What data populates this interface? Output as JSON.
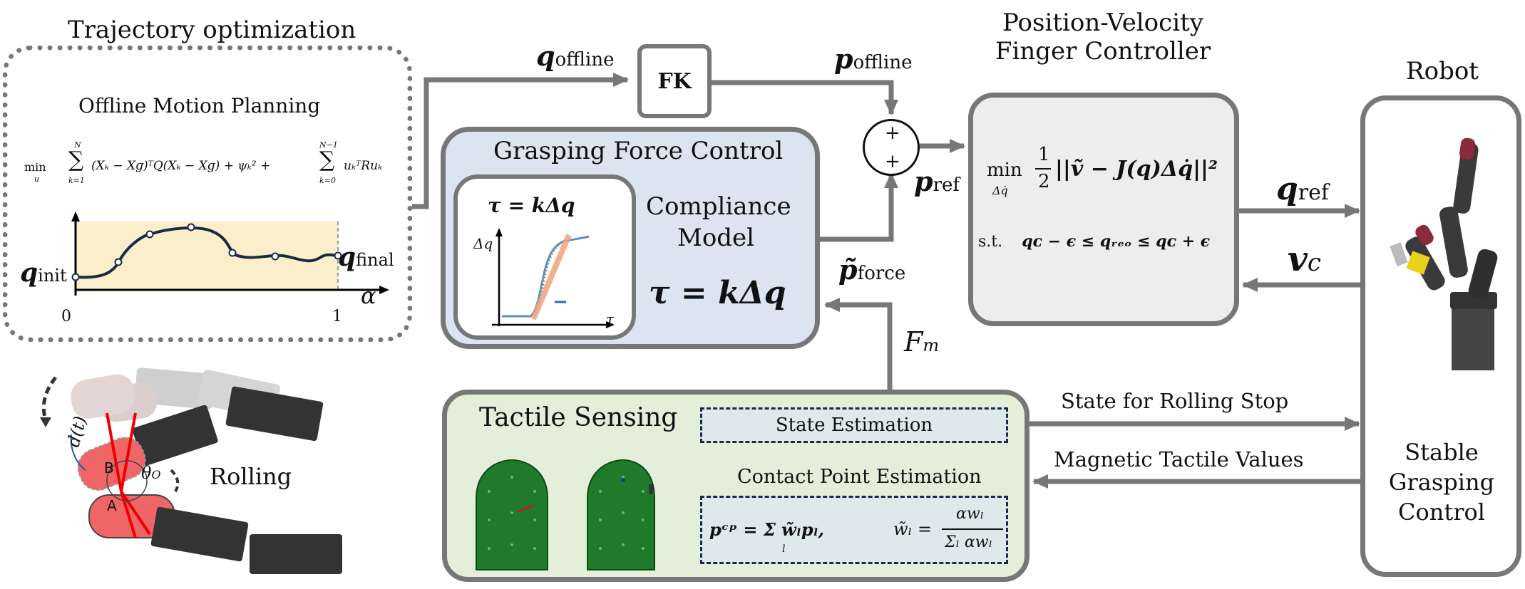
{
  "trajectory": {
    "title": "Trajectory optimization",
    "inner_title": "Offline Motion Planning",
    "cost_min": "min",
    "cost_var": "u",
    "cost_sum1_top": "N",
    "cost_sum1_bottom": "k=1",
    "cost_term1": "(Xₖ − Xɡ)ᵀQ(Xₖ − Xɡ) + ψₖ² +",
    "cost_sum2_top": "N−1",
    "cost_sum2_bottom": "k=0",
    "cost_term2": "uₖᵀRuₖ",
    "q_init": "q",
    "q_init_sub": "init",
    "q_final": "q",
    "q_final_sub": "final",
    "axis_alpha": "α",
    "tick_0": "0",
    "tick_1": "1"
  },
  "rolling": {
    "label": "Rolling",
    "d_label": "d(t)",
    "theta_label": "θ",
    "theta_sub": "O",
    "point_a": "A",
    "point_b": "B"
  },
  "fk": {
    "label": "FK"
  },
  "signals": {
    "q_offline": "q",
    "q_offline_sub": "offline",
    "p_offline": "p",
    "p_offline_sub": "offline",
    "p_ref": "p",
    "p_ref_sub": "ref",
    "p_force": "p̃",
    "p_force_sub": "force",
    "q_ref": "q",
    "q_ref_sub": "ref",
    "v_c": "v",
    "v_c_sub": "c",
    "f_m": "F",
    "f_m_sub": "m",
    "state_rolling_stop": "State for Rolling Stop",
    "magnetic_values": "Magnetic Tactile Values"
  },
  "sum_junction": {
    "plus_top": "+",
    "plus_bottom": "+"
  },
  "force_control": {
    "title": "Grasping Force Control",
    "inner_eq": "τ = kΔq",
    "plot_ylabel": "Δq",
    "plot_xlabel": "τ",
    "compliance_line1": "Compliance",
    "compliance_line2": "Model",
    "big_eq": "τ = kΔq"
  },
  "controller": {
    "title_line1": "Position-Velocity",
    "title_line2": "Finger Controller",
    "opt_min": "min",
    "opt_var": "Δq̇",
    "opt_frac_num": "1",
    "opt_frac_den": "2",
    "opt_body": "||ṽ − J(q)Δq̇||²",
    "st_label": "s.t.",
    "st_body": "qᴄ − ϵ ≤ qᵣₑₒ ≤ qᴄ + ϵ"
  },
  "robot": {
    "title": "Robot",
    "label_line1": "Stable",
    "label_line2": "Grasping",
    "label_line3": "Control"
  },
  "tactile": {
    "title": "Tactile Sensing",
    "state_estimation": "State Estimation",
    "contact_title": "Contact Point Estimation",
    "contact_eq_left": "pᶜᵖ = Σ w̃ₗpₗ,",
    "contact_sum_sub": "l",
    "contact_eq_right_lhs": "w̃ₗ =",
    "contact_frac_num": "αwₗ",
    "contact_frac_den": "Σₗ αwₗ"
  },
  "colors": {
    "gray_arrow": "#777777",
    "force_bg": "#dce4f2",
    "tactile_bg": "#e3efd9",
    "controller_bg": "#ededed",
    "state_box_bg": "#dde9ea",
    "plot_fill": "#fbeecb",
    "curve": "#1a2a44",
    "dashed_border": "#1b2a45"
  }
}
